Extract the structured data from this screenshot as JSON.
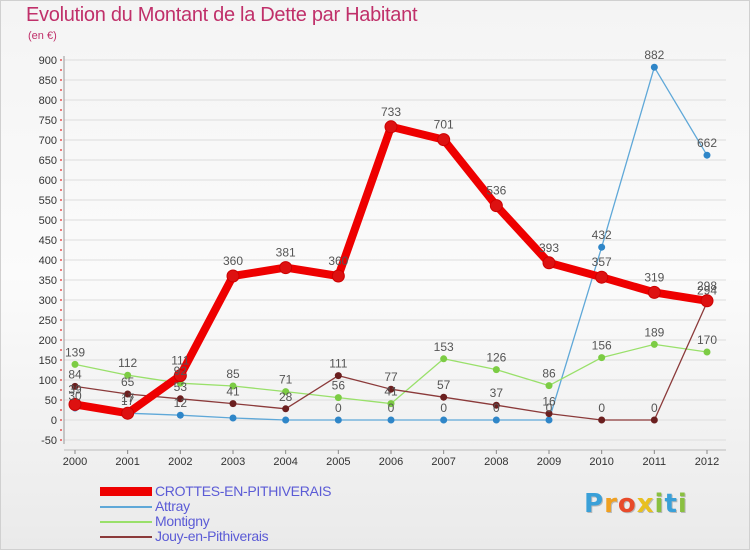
{
  "title": "Evolution du Montant de la Dette par Habitant",
  "subtitle": "(en €)",
  "logo": {
    "text": "Proxiti",
    "letters": [
      {
        "ch": "P",
        "color": "#3aa0d8"
      },
      {
        "ch": "r",
        "color": "#f0a020"
      },
      {
        "ch": "o",
        "color": "#e84a2a"
      },
      {
        "ch": "x",
        "color": "#e8c020"
      },
      {
        "ch": "i",
        "color": "#8ac040"
      },
      {
        "ch": "t",
        "color": "#3aa0d8"
      },
      {
        "ch": "i",
        "color": "#8ac040"
      }
    ]
  },
  "colors": {
    "title": "#c0306a",
    "axis_text": "#333333",
    "label_text": "#555555",
    "grid": "#dddddd",
    "tick_red": "#e00000"
  },
  "chart_data": {
    "type": "line",
    "x": [
      "2000",
      "2001",
      "2002",
      "2003",
      "2004",
      "2005",
      "2006",
      "2007",
      "2008",
      "2009",
      "2010",
      "2011",
      "2012"
    ],
    "ylim": [
      -50,
      900
    ],
    "yticks": [
      -50,
      0,
      50,
      100,
      150,
      200,
      250,
      300,
      350,
      400,
      450,
      500,
      550,
      600,
      650,
      700,
      750,
      800,
      850,
      900
    ],
    "grid": true,
    "legend_position": "bottom-left",
    "series": [
      {
        "name": "CROTTES-EN-PITHIVERAIS",
        "color": "#ee0000",
        "point_color": "#dd1111",
        "width": 8,
        "radius": 6,
        "legend_color": "#5b5bd6",
        "legend_bold": true,
        "values": [
          39,
          17,
          111,
          360,
          381,
          360,
          733,
          701,
          536,
          393,
          357,
          319,
          298
        ],
        "labels": [
          "39",
          "17",
          "111",
          "360",
          "381",
          "360",
          "733",
          "701",
          "536",
          "393",
          "357",
          "319",
          "298"
        ]
      },
      {
        "name": "Attray",
        "color": "#5fa8d8",
        "point_color": "#2f86c8",
        "width": 1.3,
        "radius": 3.5,
        "legend_color": "#5b5bd6",
        "values": [
          30,
          17,
          12,
          5,
          0,
          0,
          0,
          0,
          0,
          0,
          432,
          882,
          662
        ],
        "labels": [
          "30",
          "17",
          "12",
          "",
          "",
          "0",
          "0",
          "0",
          "0",
          "0",
          "432",
          "882",
          "662"
        ]
      },
      {
        "name": "Montigny",
        "color": "#99e06a",
        "point_color": "#7ccc44",
        "width": 1.3,
        "radius": 3.5,
        "legend_color": "#5b5bd6",
        "values": [
          139,
          112,
          92,
          85,
          71,
          56,
          41,
          153,
          126,
          86,
          156,
          189,
          170
        ],
        "labels": [
          "139",
          "112",
          "92",
          "85",
          "71",
          "56",
          "41",
          "153",
          "126",
          "86",
          "156",
          "189",
          "170"
        ]
      },
      {
        "name": "Jouy-en-Pithiverais",
        "color": "#8b3a3a",
        "point_color": "#6b1f1f",
        "width": 1.3,
        "radius": 3.5,
        "legend_color": "#5b5bd6",
        "values": [
          84,
          65,
          53,
          41,
          28,
          111,
          77,
          57,
          37,
          16,
          0,
          0,
          294
        ],
        "labels": [
          "84",
          "65",
          "53",
          "41",
          "28",
          "111",
          "77",
          "57",
          "37",
          "16",
          "0",
          "0",
          "294"
        ]
      }
    ]
  }
}
